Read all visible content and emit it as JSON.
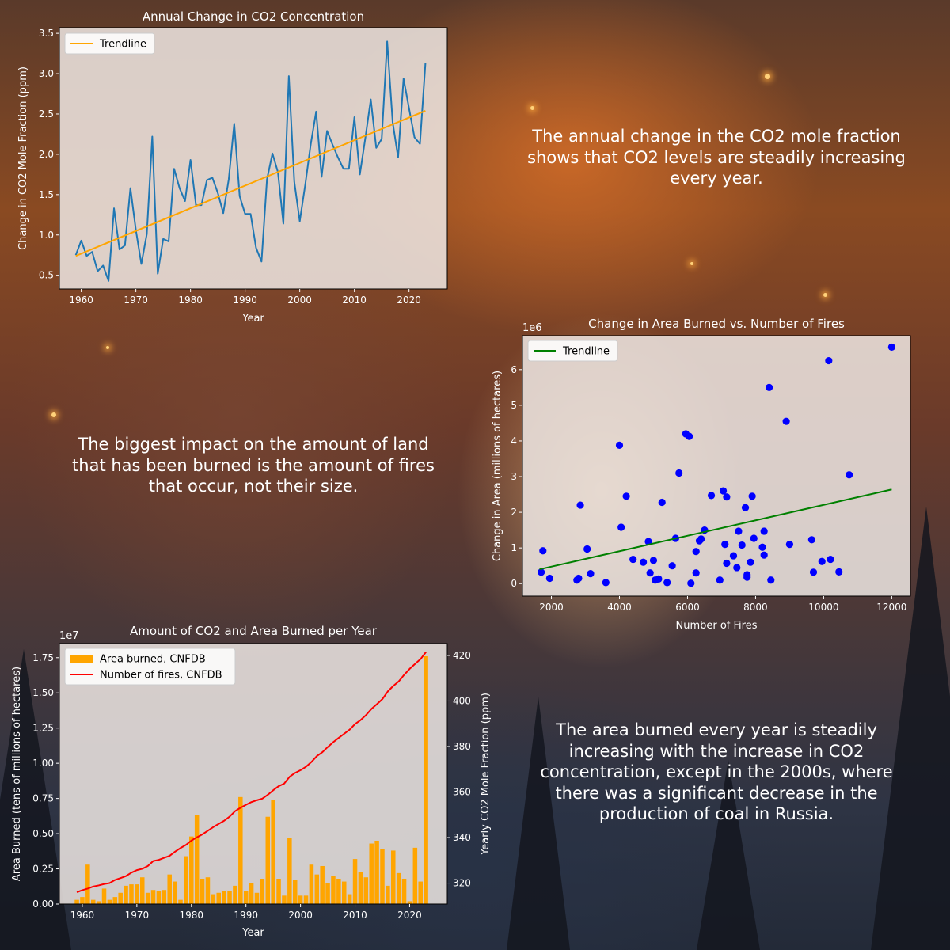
{
  "background_colors": {
    "fire": "#d9772e",
    "smoke": "#3a3a48",
    "axis_text": "#ffffff",
    "plot_bg": "#e8e0dc"
  },
  "notes": {
    "co2": "The annual change in the CO2 mole fraction shows that CO2 levels are steadily increasing every year.",
    "impact": "The biggest impact on the amount of land that has been burned is the amount of fires that occur, not their size.",
    "area": "The area burned every year is steadily increasing with the increase in CO2 concentration, except in the 2000s, where there was a significant decrease in the production of coal in Russia."
  },
  "chart_data": [
    {
      "id": "co2_change",
      "type": "line",
      "title": "Annual Change in CO2 Concentration",
      "xlabel": "Year",
      "ylabel": "Change in CO2 Mole Fraction (ppm)",
      "xlim": [
        1956,
        2027
      ],
      "ylim": [
        0.33,
        3.57
      ],
      "xticks": [
        1960,
        1970,
        1980,
        1990,
        2000,
        2010,
        2020
      ],
      "yticks": [
        0.5,
        1.0,
        1.5,
        2.0,
        2.5,
        3.0,
        3.5
      ],
      "ytick_labels": [
        "0.5",
        "1.0",
        "1.5",
        "2.0",
        "2.5",
        "3.0",
        "3.5"
      ],
      "legend": {
        "position": "upper-left",
        "entries": [
          "Trendline"
        ]
      },
      "series": [
        {
          "color": "#1f77b4",
          "x": [
            1959,
            1960,
            1961,
            1962,
            1963,
            1964,
            1965,
            1966,
            1967,
            1968,
            1969,
            1970,
            1971,
            1972,
            1973,
            1974,
            1975,
            1976,
            1977,
            1978,
            1979,
            1980,
            1981,
            1982,
            1983,
            1984,
            1985,
            1986,
            1987,
            1988,
            1989,
            1990,
            1991,
            1992,
            1993,
            1994,
            1995,
            1996,
            1997,
            1998,
            1999,
            2000,
            2001,
            2002,
            2003,
            2004,
            2005,
            2006,
            2007,
            2008,
            2009,
            2010,
            2011,
            2012,
            2013,
            2014,
            2015,
            2016,
            2017,
            2018,
            2019,
            2020,
            2021,
            2022,
            2023
          ],
          "values": [
            0.75,
            0.93,
            0.74,
            0.79,
            0.55,
            0.62,
            0.43,
            1.33,
            0.82,
            0.87,
            1.58,
            1.06,
            0.64,
            1.01,
            2.22,
            0.52,
            0.95,
            0.92,
            1.82,
            1.58,
            1.42,
            1.93,
            1.37,
            1.37,
            1.68,
            1.71,
            1.52,
            1.27,
            1.69,
            2.38,
            1.48,
            1.26,
            1.26,
            0.84,
            0.67,
            1.69,
            2.01,
            1.78,
            1.14,
            2.97,
            1.66,
            1.17,
            1.62,
            2.12,
            2.53,
            1.72,
            2.29,
            2.12,
            1.96,
            1.82,
            1.82,
            2.46,
            1.75,
            2.2,
            2.68,
            2.08,
            2.19,
            3.4,
            2.4,
            1.96,
            2.94,
            2.57,
            2.21,
            2.13,
            3.13
          ]
        },
        {
          "name": "Trendline",
          "color": "#ffa500",
          "x": [
            1959,
            2023
          ],
          "values": [
            0.74,
            2.54
          ]
        }
      ]
    },
    {
      "id": "area_vs_fires",
      "type": "scatter",
      "title": "Change in Area Burned vs. Number of Fires",
      "xlabel": "Number of Fires",
      "ylabel": "Change in Area (millions of hectares)",
      "offset_label": "1e6",
      "xlim": [
        1150,
        12550
      ],
      "ylim": [
        -0.35,
        6.95
      ],
      "xticks": [
        2000,
        4000,
        6000,
        8000,
        10000,
        12000
      ],
      "yticks": [
        0,
        1,
        2,
        3,
        4,
        5,
        6
      ],
      "legend": {
        "position": "upper-left",
        "entries": [
          "Trendline"
        ]
      },
      "points_color": "#0000ff",
      "points": [
        [
          1700,
          0.32
        ],
        [
          1750,
          0.92
        ],
        [
          1950,
          0.15
        ],
        [
          2750,
          0.1
        ],
        [
          2800,
          0.15
        ],
        [
          2850,
          2.2
        ],
        [
          3050,
          0.97
        ],
        [
          3150,
          0.28
        ],
        [
          3600,
          0.03
        ],
        [
          4000,
          3.88
        ],
        [
          4050,
          1.58
        ],
        [
          4200,
          2.45
        ],
        [
          4400,
          0.68
        ],
        [
          4700,
          0.6
        ],
        [
          4850,
          1.18
        ],
        [
          4900,
          0.3
        ],
        [
          5000,
          0.65
        ],
        [
          5050,
          0.1
        ],
        [
          5150,
          0.13
        ],
        [
          5250,
          2.28
        ],
        [
          5400,
          0.03
        ],
        [
          5550,
          0.5
        ],
        [
          5650,
          1.27
        ],
        [
          5750,
          3.1
        ],
        [
          5950,
          4.2
        ],
        [
          6050,
          4.13
        ],
        [
          6100,
          0.01
        ],
        [
          6250,
          0.3
        ],
        [
          6250,
          0.9
        ],
        [
          6350,
          1.2
        ],
        [
          6400,
          1.25
        ],
        [
          6500,
          1.5
        ],
        [
          6700,
          2.47
        ],
        [
          6950,
          0.1
        ],
        [
          7050,
          2.6
        ],
        [
          7100,
          1.1
        ],
        [
          7150,
          0.57
        ],
        [
          7150,
          2.43
        ],
        [
          7350,
          0.78
        ],
        [
          7450,
          0.45
        ],
        [
          7500,
          1.47
        ],
        [
          7600,
          1.08
        ],
        [
          7700,
          2.13
        ],
        [
          7750,
          0.18
        ],
        [
          7750,
          0.25
        ],
        [
          7850,
          0.6
        ],
        [
          7900,
          2.45
        ],
        [
          7950,
          1.27
        ],
        [
          8200,
          1.02
        ],
        [
          8250,
          0.8
        ],
        [
          8250,
          1.47
        ],
        [
          8400,
          5.5
        ],
        [
          8450,
          0.1
        ],
        [
          8900,
          4.55
        ],
        [
          9000,
          1.1
        ],
        [
          9650,
          1.23
        ],
        [
          9700,
          0.32
        ],
        [
          9950,
          0.62
        ],
        [
          10150,
          6.25
        ],
        [
          10200,
          0.68
        ],
        [
          10450,
          0.33
        ],
        [
          10750,
          3.05
        ],
        [
          12000,
          6.63
        ]
      ],
      "trendline": {
        "name": "Trendline",
        "color": "#008000",
        "x": [
          1650,
          12000
        ],
        "values": [
          0.4,
          2.64
        ]
      }
    },
    {
      "id": "co2_and_area",
      "type": "bar",
      "title": "Amount of CO2 and Area Burned per Year",
      "xlabel": "Year",
      "ylabel": "Area Burned (tens of millions of hectares)",
      "y2label": "Yearly CO2 Mole Fraction (ppm)",
      "offset_label": "1e7",
      "xlim": [
        1955.8,
        2026.9
      ],
      "ylim": [
        0,
        1.85
      ],
      "y2lim": [
        310.8,
        425.2
      ],
      "xticks": [
        1960,
        1970,
        1980,
        1990,
        2000,
        2010,
        2020
      ],
      "yticks": [
        0,
        0.25,
        0.5,
        0.75,
        1.0,
        1.25,
        1.5,
        1.75
      ],
      "ytick_labels": [
        "0.00",
        "0.25",
        "0.50",
        "0.75",
        "1.00",
        "1.25",
        "1.50",
        "1.75"
      ],
      "y2ticks": [
        320,
        340,
        360,
        380,
        400,
        420
      ],
      "legend": {
        "position": "upper-left",
        "entries": [
          "Area burned, CNFDB",
          "Number of fires, CNFDB"
        ]
      },
      "series": [
        {
          "name": "Area burned, CNFDB",
          "color": "#ffa500",
          "axis": "left",
          "x": [
            1959,
            1960,
            1961,
            1962,
            1963,
            1964,
            1965,
            1966,
            1967,
            1968,
            1969,
            1970,
            1971,
            1972,
            1973,
            1974,
            1975,
            1976,
            1977,
            1978,
            1979,
            1980,
            1981,
            1982,
            1983,
            1984,
            1985,
            1986,
            1987,
            1988,
            1989,
            1990,
            1991,
            1992,
            1993,
            1994,
            1995,
            1996,
            1997,
            1998,
            1999,
            2000,
            2001,
            2002,
            2003,
            2004,
            2005,
            2006,
            2007,
            2008,
            2009,
            2010,
            2011,
            2012,
            2013,
            2014,
            2015,
            2016,
            2017,
            2018,
            2019,
            2020,
            2021,
            2022,
            2023
          ],
          "values": [
            0.03,
            0.05,
            0.28,
            0.03,
            0.02,
            0.11,
            0.03,
            0.05,
            0.08,
            0.13,
            0.14,
            0.14,
            0.19,
            0.08,
            0.1,
            0.09,
            0.1,
            0.21,
            0.16,
            0.03,
            0.34,
            0.48,
            0.63,
            0.18,
            0.19,
            0.07,
            0.08,
            0.09,
            0.09,
            0.13,
            0.76,
            0.09,
            0.15,
            0.08,
            0.18,
            0.62,
            0.74,
            0.18,
            0.06,
            0.47,
            0.17,
            0.06,
            0.06,
            0.28,
            0.21,
            0.27,
            0.15,
            0.2,
            0.18,
            0.16,
            0.07,
            0.32,
            0.23,
            0.19,
            0.43,
            0.45,
            0.39,
            0.13,
            0.38,
            0.22,
            0.18,
            0.02,
            0.4,
            0.16,
            1.76
          ]
        },
        {
          "name": "Number of fires, CNFDB",
          "color": "#ff0000",
          "axis": "right",
          "x": [
            1959,
            1960,
            1961,
            1962,
            1963,
            1964,
            1965,
            1966,
            1967,
            1968,
            1969,
            1970,
            1971,
            1972,
            1973,
            1974,
            1975,
            1976,
            1977,
            1978,
            1979,
            1980,
            1981,
            1982,
            1983,
            1984,
            1985,
            1986,
            1987,
            1988,
            1989,
            1990,
            1991,
            1992,
            1993,
            1994,
            1995,
            1996,
            1997,
            1998,
            1999,
            2000,
            2001,
            2002,
            2003,
            2004,
            2005,
            2006,
            2007,
            2008,
            2009,
            2010,
            2011,
            2012,
            2013,
            2014,
            2015,
            2016,
            2017,
            2018,
            2019,
            2020,
            2021,
            2022,
            2023
          ],
          "values": [
            316.0,
            316.9,
            317.6,
            318.5,
            319.0,
            319.6,
            320.0,
            321.4,
            322.2,
            323.1,
            324.6,
            325.7,
            326.3,
            327.5,
            329.7,
            330.2,
            331.1,
            332.0,
            333.8,
            335.4,
            336.8,
            338.7,
            340.1,
            341.4,
            343.0,
            344.6,
            346.0,
            347.4,
            349.2,
            351.6,
            353.1,
            354.4,
            355.6,
            356.4,
            357.1,
            358.8,
            360.8,
            362.6,
            363.7,
            366.7,
            368.4,
            369.6,
            371.1,
            373.2,
            375.8,
            377.5,
            379.8,
            381.9,
            383.8,
            385.6,
            387.4,
            389.9,
            391.6,
            393.8,
            396.5,
            398.6,
            400.8,
            404.2,
            406.6,
            408.6,
            411.5,
            414.1,
            416.3,
            418.4,
            421.5
          ]
        }
      ]
    }
  ]
}
